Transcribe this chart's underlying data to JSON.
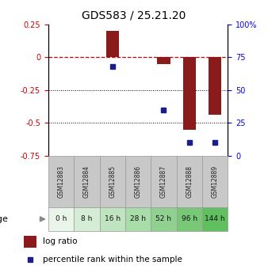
{
  "title": "GDS583 / 25.21.20",
  "samples": [
    "GSM12883",
    "GSM12884",
    "GSM12885",
    "GSM12886",
    "GSM12887",
    "GSM12888",
    "GSM12889"
  ],
  "age_labels": [
    "0 h",
    "8 h",
    "16 h",
    "28 h",
    "52 h",
    "96 h",
    "144 h"
  ],
  "log_ratio": [
    0.0,
    0.0,
    0.2,
    0.0,
    -0.05,
    -0.55,
    -0.44
  ],
  "percentile_rank": [
    null,
    null,
    68,
    null,
    35,
    10,
    10
  ],
  "ylim_left": [
    -0.75,
    0.25
  ],
  "ylim_right": [
    0,
    100
  ],
  "yticks_left": [
    0.25,
    0,
    -0.25,
    -0.5,
    -0.75
  ],
  "ytick_labels_left": [
    "0.25",
    "0",
    "-0.25",
    "-0.5",
    "-0.75"
  ],
  "yticks_right": [
    100,
    75,
    50,
    25,
    0
  ],
  "ytick_labels_right": [
    "100%",
    "75",
    "50",
    "25",
    "0"
  ],
  "bar_color": "#8B1A1A",
  "dot_color": "#1C1C8C",
  "zero_line_color": "#CC0000",
  "grid_color": "#000000",
  "sample_label_bg": "#c8c8c8",
  "age_colors": [
    "#e8f5e8",
    "#d4edd4",
    "#c0e4c0",
    "#a8dca8",
    "#90d090",
    "#78c878",
    "#60c060"
  ],
  "bar_width": 0.5,
  "figsize": [
    3.38,
    3.45
  ],
  "dpi": 100
}
